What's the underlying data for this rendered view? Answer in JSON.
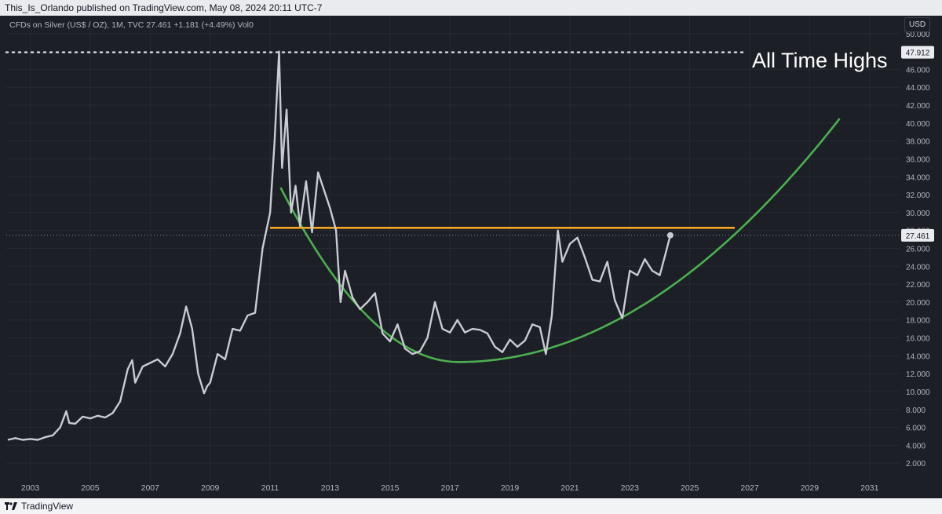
{
  "header": {
    "publisher_text": "This_Is_Orlando published on TradingView.com, May 08, 2024 20:11 UTC-7"
  },
  "symbol": {
    "info": "CFDs on Silver (US$ / OZ), 1M, TVC  27.461  +1.181 (+4.49%)  Vol0"
  },
  "axis": {
    "currency": "USD"
  },
  "annotation": {
    "ath_label": "All Time Highs"
  },
  "footer": {
    "brand": "TradingView"
  },
  "colors": {
    "background": "#1c1f26",
    "price_line": "#c9cbd3",
    "resistance": "#f5a623",
    "trend_curve": "#4caf50",
    "ath_line": "#d1d4dc"
  },
  "chart_data": {
    "type": "line",
    "title": "",
    "xlabel": "",
    "ylabel": "",
    "x_tick_labels": [
      "2003",
      "2005",
      "2007",
      "2009",
      "2011",
      "2013",
      "2015",
      "2017",
      "2019",
      "2021",
      "2023",
      "2025",
      "2027",
      "2029",
      "2031"
    ],
    "x_ticks": [
      2003,
      2005,
      2007,
      2009,
      2011,
      2013,
      2015,
      2017,
      2019,
      2021,
      2023,
      2025,
      2027,
      2029,
      2031
    ],
    "y_ticks": [
      2,
      4,
      6,
      8,
      10,
      12,
      14,
      16,
      18,
      20,
      22,
      24,
      26,
      28,
      30,
      32,
      34,
      36,
      38,
      40,
      42,
      44,
      46,
      50
    ],
    "y_tick_labels": [
      "2.000",
      "4.000",
      "6.000",
      "8.000",
      "10.000",
      "12.000",
      "14.000",
      "16.000",
      "18.000",
      "20.000",
      "22.000",
      "24.000",
      "26.000",
      "28.000",
      "30.000",
      "32.000",
      "34.000",
      "36.000",
      "38.000",
      "40.000",
      "42.000",
      "44.000",
      "46.000",
      "50.000"
    ],
    "xlim": [
      2002.2,
      2032.0
    ],
    "ylim": [
      0.0,
      52.0
    ],
    "grid": true,
    "last_price_label": "27.461",
    "last_price": 27.461,
    "ath_price_label": "47.912",
    "ath_price": 47.912,
    "series": [
      {
        "x": [
          2002.25,
          2002.5,
          2002.75,
          2003.0,
          2003.25,
          2003.5,
          2003.75,
          2004.0,
          2004.2,
          2004.3,
          2004.5,
          2004.75,
          2005.0,
          2005.25,
          2005.5,
          2005.75,
          2006.0,
          2006.25,
          2006.4,
          2006.5,
          2006.75,
          2007.0,
          2007.25,
          2007.5,
          2007.75,
          2008.0,
          2008.2,
          2008.4,
          2008.6,
          2008.8,
          2008.9,
          2009.0,
          2009.25,
          2009.5,
          2009.75,
          2010.0,
          2010.25,
          2010.5,
          2010.75,
          2011.0,
          2011.15,
          2011.3,
          2011.4,
          2011.55,
          2011.7,
          2011.85,
          2012.0,
          2012.2,
          2012.4,
          2012.6,
          2012.8,
          2013.0,
          2013.2,
          2013.35,
          2013.5,
          2013.75,
          2014.0,
          2014.25,
          2014.5,
          2014.75,
          2015.0,
          2015.25,
          2015.5,
          2015.75,
          2016.0,
          2016.25,
          2016.5,
          2016.75,
          2017.0,
          2017.25,
          2017.5,
          2017.75,
          2018.0,
          2018.25,
          2018.5,
          2018.75,
          2019.0,
          2019.25,
          2019.5,
          2019.75,
          2020.0,
          2020.2,
          2020.4,
          2020.6,
          2020.75,
          2021.0,
          2021.25,
          2021.5,
          2021.75,
          2022.0,
          2022.25,
          2022.5,
          2022.75,
          2023.0,
          2023.25,
          2023.5,
          2023.75,
          2024.0,
          2024.2,
          2024.35
        ],
        "y": [
          4.6,
          4.8,
          4.6,
          4.7,
          4.6,
          4.9,
          5.1,
          6.0,
          7.8,
          6.5,
          6.4,
          7.2,
          7.0,
          7.3,
          7.1,
          7.6,
          8.9,
          12.5,
          13.5,
          11.0,
          12.8,
          13.2,
          13.6,
          12.8,
          14.2,
          16.5,
          19.5,
          17.0,
          12.0,
          9.8,
          10.6,
          11.0,
          14.2,
          13.6,
          17.0,
          16.8,
          18.5,
          18.8,
          26.0,
          30.0,
          38.0,
          48.0,
          35.0,
          41.5,
          30.0,
          33.0,
          28.5,
          33.5,
          27.8,
          34.5,
          32.5,
          30.5,
          28.0,
          20.0,
          23.5,
          20.5,
          19.2,
          20.0,
          21.0,
          16.5,
          15.6,
          17.5,
          14.8,
          14.2,
          14.5,
          16.0,
          20.0,
          17.0,
          16.6,
          18.0,
          16.6,
          17.0,
          16.9,
          16.5,
          15.0,
          14.4,
          15.8,
          15.0,
          15.7,
          17.5,
          17.2,
          14.2,
          18.5,
          28.0,
          24.5,
          26.5,
          27.2,
          25.0,
          22.5,
          22.3,
          24.5,
          20.2,
          18.2,
          23.5,
          23.0,
          24.8,
          23.5,
          23.0,
          25.5,
          27.461
        ]
      }
    ],
    "trend_curve": {
      "start": [
        2011.35,
        32.8
      ],
      "vertex": [
        2017.3,
        13.3
      ],
      "end": [
        2030.0,
        40.5
      ]
    },
    "resistance": {
      "y": 28.3,
      "x_start": 2011.0,
      "x_end": 2026.5
    },
    "ath_line": {
      "y": 47.912
    }
  }
}
